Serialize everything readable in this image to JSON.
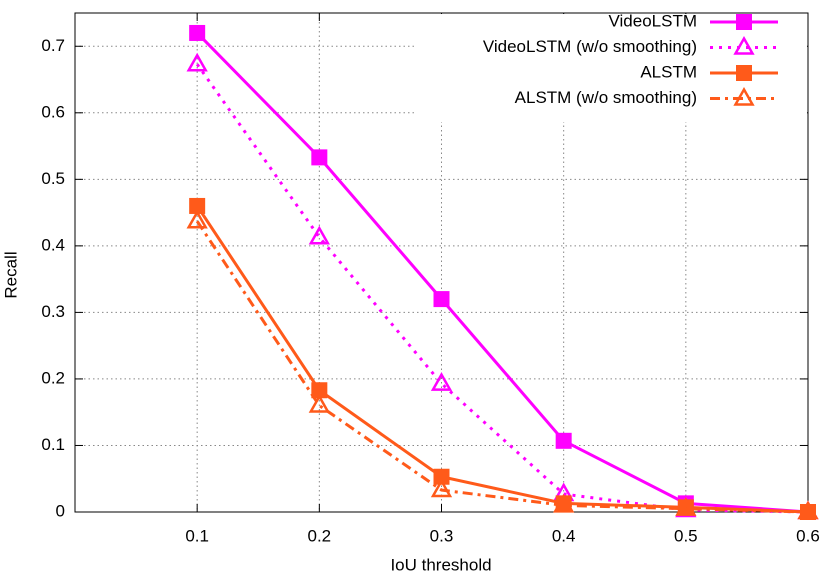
{
  "chart_data": {
    "type": "line",
    "x_label": "IoU threshold",
    "y_label": "Recall",
    "x": [
      0.1,
      0.2,
      0.3,
      0.4,
      0.5,
      0.6
    ],
    "series": [
      {
        "name": "VideoLSTM",
        "color": "#ff00ff",
        "marker": "square",
        "dash": "solid",
        "values": [
          0.72,
          0.533,
          0.32,
          0.107,
          0.013,
          0.0
        ]
      },
      {
        "name": "VideoLSTM (w/o smoothing)",
        "color": "#ff00ff",
        "marker": "triangle",
        "dash": "dotted",
        "values": [
          0.673,
          0.413,
          0.193,
          0.027,
          0.003,
          0.0
        ]
      },
      {
        "name": "ALSTM",
        "color": "#ff5a1a",
        "marker": "square",
        "dash": "solid",
        "values": [
          0.46,
          0.183,
          0.053,
          0.013,
          0.007,
          0.0
        ]
      },
      {
        "name": "ALSTM (w/o smoothing)",
        "color": "#ff5a1a",
        "marker": "triangle",
        "dash": "dashdot",
        "values": [
          0.437,
          0.16,
          0.033,
          0.01,
          0.005,
          0.0
        ]
      }
    ],
    "xlim": [
      0,
      0.6
    ],
    "xticks": [
      0.1,
      0.2,
      0.3,
      0.4,
      0.5,
      0.6
    ],
    "ylim": [
      0,
      0.75
    ],
    "yticks": [
      0,
      0.1,
      0.2,
      0.3,
      0.4,
      0.5,
      0.6,
      0.7
    ],
    "grid": true,
    "legend": "upper right"
  }
}
